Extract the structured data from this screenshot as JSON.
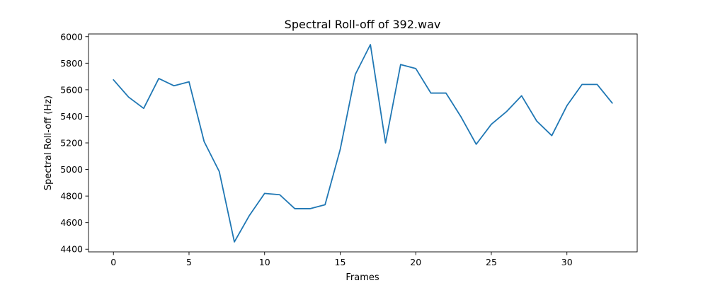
{
  "chart_data": {
    "type": "line",
    "title": "Spectral Roll-off of 392.wav",
    "xlabel": "Frames",
    "ylabel": "Spectral Roll-off (Hz)",
    "xlim": [
      -1.65,
      34.65
    ],
    "ylim": [
      4380,
      6020
    ],
    "xticks": [
      0,
      5,
      10,
      15,
      20,
      25,
      30
    ],
    "yticks": [
      4400,
      4600,
      4800,
      5000,
      5200,
      5400,
      5600,
      5800,
      6000
    ],
    "grid": false,
    "series": [
      {
        "color": "#1f77b4",
        "x": [
          0,
          1,
          2,
          3,
          4,
          5,
          6,
          7,
          8,
          9,
          10,
          11,
          12,
          13,
          14,
          15,
          16,
          17,
          18,
          19,
          20,
          21,
          22,
          23,
          24,
          25,
          26,
          27,
          28,
          29,
          30,
          31,
          32,
          33
        ],
        "values": [
          5675,
          5545,
          5460,
          5685,
          5630,
          5660,
          5210,
          4985,
          4455,
          4655,
          4820,
          4810,
          4705,
          4705,
          4735,
          5150,
          5715,
          5940,
          5200,
          5790,
          5760,
          5575,
          5575,
          5395,
          5190,
          5340,
          5435,
          5555,
          5365,
          5255,
          5480,
          5640,
          5640,
          5500
        ]
      }
    ]
  }
}
